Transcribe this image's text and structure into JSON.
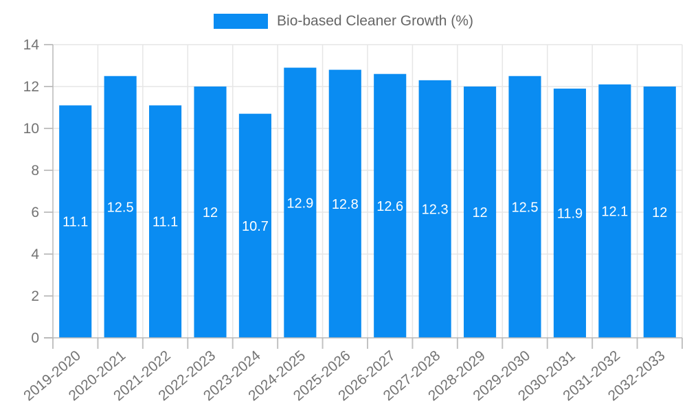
{
  "chart_data": {
    "type": "bar",
    "title": "Bio-based Cleaner Growth (%)",
    "legend": [
      "Bio-based Cleaner Growth (%)"
    ],
    "legend_position": "top",
    "categories": [
      "2019-2020",
      "2020-2021",
      "2021-2022",
      "2022-2023",
      "2023-2024",
      "2024-2025",
      "2025-2026",
      "2026-2027",
      "2027-2028",
      "2028-2029",
      "2029-2030",
      "2030-2031",
      "2031-2032",
      "2032-2033"
    ],
    "values": [
      11.1,
      12.5,
      11.1,
      12,
      10.7,
      12.9,
      12.8,
      12.6,
      12.3,
      12,
      12.5,
      11.9,
      12.1,
      12
    ],
    "bar_value_labels": [
      "11.1",
      "12.5",
      "11.1",
      "12",
      "10.7",
      "12.9",
      "12.8",
      "12.6",
      "12.3",
      "12",
      "12.5",
      "11.9",
      "12.1",
      "12"
    ],
    "xlabel": "",
    "ylabel": "",
    "ylim": [
      0,
      14
    ],
    "yticks": [
      0,
      2,
      4,
      6,
      8,
      10,
      12,
      14
    ],
    "grid": true,
    "x_label_rotation_deg": -40
  },
  "colors": {
    "bar": "#0a8cf2",
    "bar_label": "#ffffff",
    "grid": "#e6e6e6",
    "axis": "#b8b8b8",
    "tick": "#c2c2c2",
    "tick_label": "#737373",
    "legend_text": "#666666",
    "background": "#ffffff"
  }
}
